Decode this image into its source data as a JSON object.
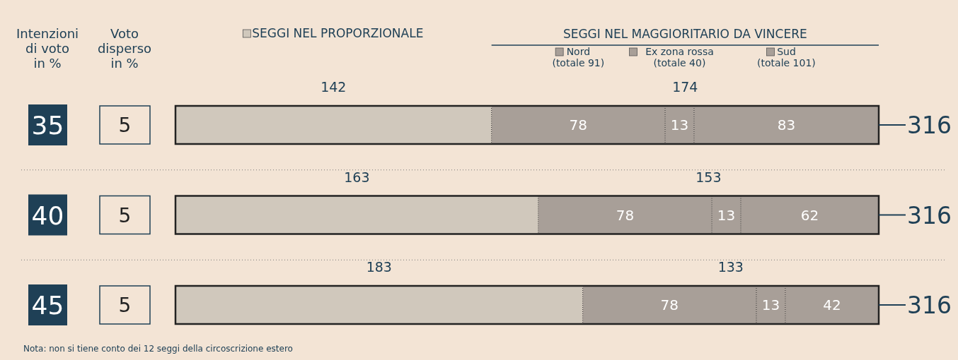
{
  "chart_data": {
    "type": "bar",
    "orientation": "horizontal",
    "stacked": true,
    "ylabel": "Intenzioni di voto in %",
    "legend_title": "SEGGI NEL MAGGIORITARIO DA VINCERE",
    "legend": "top",
    "tick_labels": "y",
    "categories": [
      "35",
      "40",
      "45"
    ],
    "xlim": [
      0,
      316
    ],
    "series": [
      {
        "name": "SEGGI NEL PROPORZIONALE",
        "color": "#d0c8bc",
        "values": [
          142,
          163,
          183
        ],
        "value_labels": [
          null,
          null,
          null
        ]
      },
      {
        "name": "Nord (totale 91)",
        "color": "#a89f98",
        "values": [
          78,
          78,
          78
        ],
        "value_labels": [
          "78",
          "78",
          "78"
        ]
      },
      {
        "name": "Ex zona rossa (totale 40)",
        "color": "#a89f98",
        "values": [
          13,
          13,
          13
        ],
        "value_labels": [
          "13",
          "13",
          "13"
        ]
      },
      {
        "name": "Sud (totale 101)",
        "color": "#a89f98",
        "values": [
          83,
          62,
          42
        ],
        "value_labels": [
          "83",
          "62",
          "42"
        ]
      }
    ],
    "totals": [
      "316",
      "316",
      "316"
    ],
    "annotations": [
      "Voto disperso in %",
      "5",
      "5",
      "5",
      "142",
      "174",
      "163",
      "153",
      "183",
      "133",
      "Nota: non si tiene conto dei 12 seggi della circoscrizione estero"
    ]
  }
}
